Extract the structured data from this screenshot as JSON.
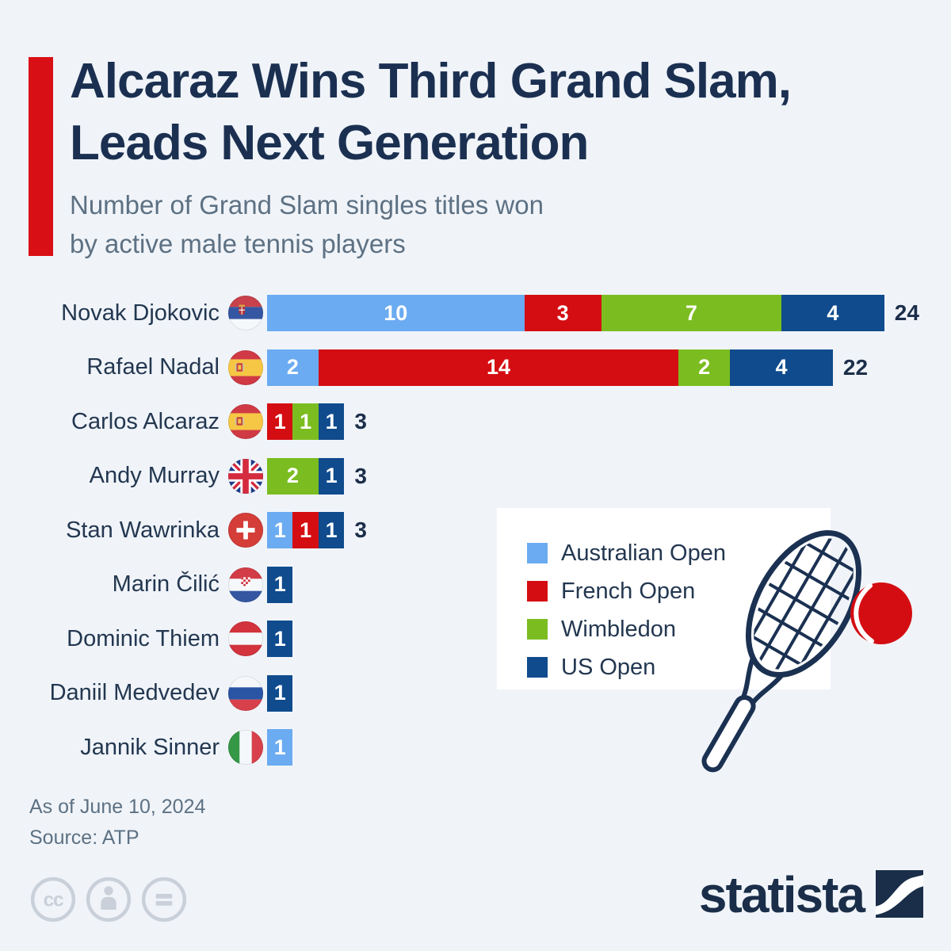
{
  "header": {
    "title_line1": "Alcaraz Wins Third Grand Slam,",
    "title_line2": "Leads Next Generation",
    "subtitle_line1": "Number of Grand Slam singles titles won",
    "subtitle_line2": "by active male tennis players"
  },
  "chart_data": {
    "type": "bar",
    "orientation": "horizontal",
    "stacked": true,
    "title": "Alcaraz Wins Third Grand Slam, Leads Next Generation",
    "subtitle": "Number of Grand Slam singles titles won by active male tennis players",
    "value_labels": "inside-segments",
    "legend_position": "middle-right",
    "categories": [
      "Novak Djokovic",
      "Rafael Nadal",
      "Carlos Alcaraz",
      "Andy Murray",
      "Stan Wawrinka",
      "Marin Čilić",
      "Dominic Thiem",
      "Daniil Medvedev",
      "Jannik Sinner"
    ],
    "flags": [
      "serbia",
      "spain",
      "spain",
      "united-kingdom",
      "switzerland",
      "croatia",
      "austria",
      "russia",
      "italy"
    ],
    "series": [
      {
        "name": "Australian Open",
        "color": "#6babf1",
        "values": [
          10,
          2,
          0,
          0,
          1,
          0,
          0,
          0,
          1
        ]
      },
      {
        "name": "French Open",
        "color": "#d40d12",
        "values": [
          3,
          14,
          1,
          0,
          1,
          0,
          0,
          0,
          0
        ]
      },
      {
        "name": "Wimbledon",
        "color": "#7bbd20",
        "values": [
          7,
          2,
          1,
          2,
          0,
          0,
          0,
          0,
          0
        ]
      },
      {
        "name": "US Open",
        "color": "#0f4b8d",
        "values": [
          4,
          4,
          1,
          1,
          1,
          1,
          1,
          1,
          0
        ]
      }
    ],
    "totals": [
      24,
      22,
      3,
      3,
      3,
      1,
      1,
      1,
      1
    ],
    "totals_shown": [
      true,
      true,
      true,
      true,
      true,
      false,
      false,
      false,
      false
    ]
  },
  "legend": {
    "items": [
      "Australian Open",
      "French Open",
      "Wimbledon",
      "US Open"
    ]
  },
  "footer": {
    "as_of": "As of June 10, 2024",
    "source": "Source: ATP"
  },
  "branding": {
    "logo_text": "statista"
  },
  "colors": {
    "background": "#f0f4f9",
    "accent_red": "#d90f16",
    "title_navy": "#1b3051",
    "subtitle_gray": "#5d7183",
    "total_navy": "#1c2e4a",
    "card_white": "#ffffff",
    "cc_gray": "#c9d0d9",
    "logo_navy": "#1a2e49",
    "racket_navy": "#1b3152",
    "ball_red": "#d40d12"
  },
  "icons": {
    "flags": [
      "serbia-flag-icon",
      "spain-flag-icon",
      "spain-flag-icon",
      "united-kingdom-flag-icon",
      "switzerland-flag-icon",
      "croatia-flag-icon",
      "austria-flag-icon",
      "russia-flag-icon",
      "italy-flag-icon"
    ],
    "illustration": "tennis-racket-icon",
    "ball": "tennis-ball-icon",
    "footer": [
      "creative-commons-icon",
      "attribution-icon",
      "equality-icon"
    ],
    "logo_mark": "statista-logo-mark"
  }
}
